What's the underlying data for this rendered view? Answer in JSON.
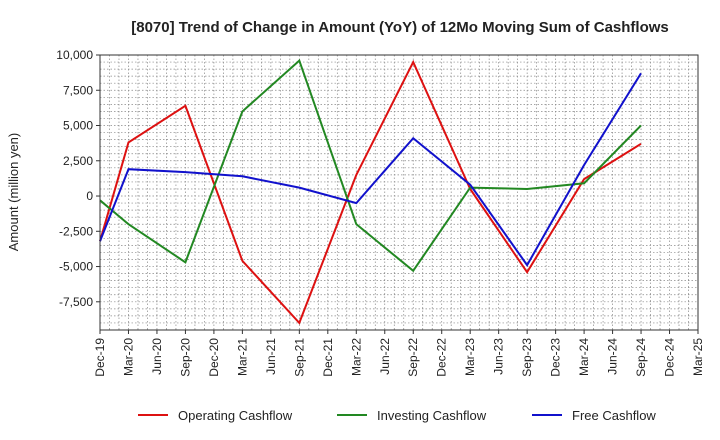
{
  "chart_data": {
    "type": "line",
    "title": "[8070]  Trend of Change in Amount (YoY) of 12Mo Moving Sum of Cashflows",
    "xlabel": "",
    "ylabel": "Amount (million yen)",
    "ylim": [
      -9500,
      10000
    ],
    "yticks": [
      10000,
      7500,
      5000,
      2500,
      0,
      -2500,
      -5000,
      -7500
    ],
    "ytick_labels": [
      "10,000",
      "7,500",
      "5,000",
      "2,500",
      "0",
      "-2,500",
      "-5,000",
      "-7,500"
    ],
    "categories": [
      "Dec-19",
      "Mar-20",
      "Jun-20",
      "Sep-20",
      "Dec-20",
      "Mar-21",
      "Jun-21",
      "Sep-21",
      "Dec-21",
      "Mar-22",
      "Jun-22",
      "Sep-22",
      "Dec-22",
      "Mar-23",
      "Jun-23",
      "Sep-23",
      "Dec-23",
      "Mar-24",
      "Jun-24",
      "Sep-24",
      "Dec-24",
      "Mar-25"
    ],
    "grid": true,
    "legend_position": "bottom",
    "series": [
      {
        "name": "Operating Cashflow",
        "color": "#dd1111",
        "values": [
          -3200,
          3800,
          null,
          6400,
          null,
          -4600,
          null,
          -9000,
          null,
          1500,
          null,
          9500,
          null,
          500,
          null,
          -5400,
          null,
          1200,
          null,
          3700,
          null,
          null
        ]
      },
      {
        "name": "Investing Cashflow",
        "color": "#228822",
        "values": [
          -300,
          -2000,
          null,
          -4700,
          null,
          6000,
          null,
          9600,
          null,
          -2000,
          null,
          -5300,
          null,
          600,
          null,
          500,
          null,
          900,
          null,
          5000,
          null,
          null
        ]
      },
      {
        "name": "Free Cashflow",
        "color": "#1111cc",
        "values": [
          -3200,
          1900,
          null,
          1700,
          null,
          1400,
          null,
          600,
          null,
          -500,
          null,
          4100,
          null,
          800,
          null,
          -4900,
          null,
          2200,
          null,
          8700,
          null,
          null
        ]
      }
    ]
  }
}
